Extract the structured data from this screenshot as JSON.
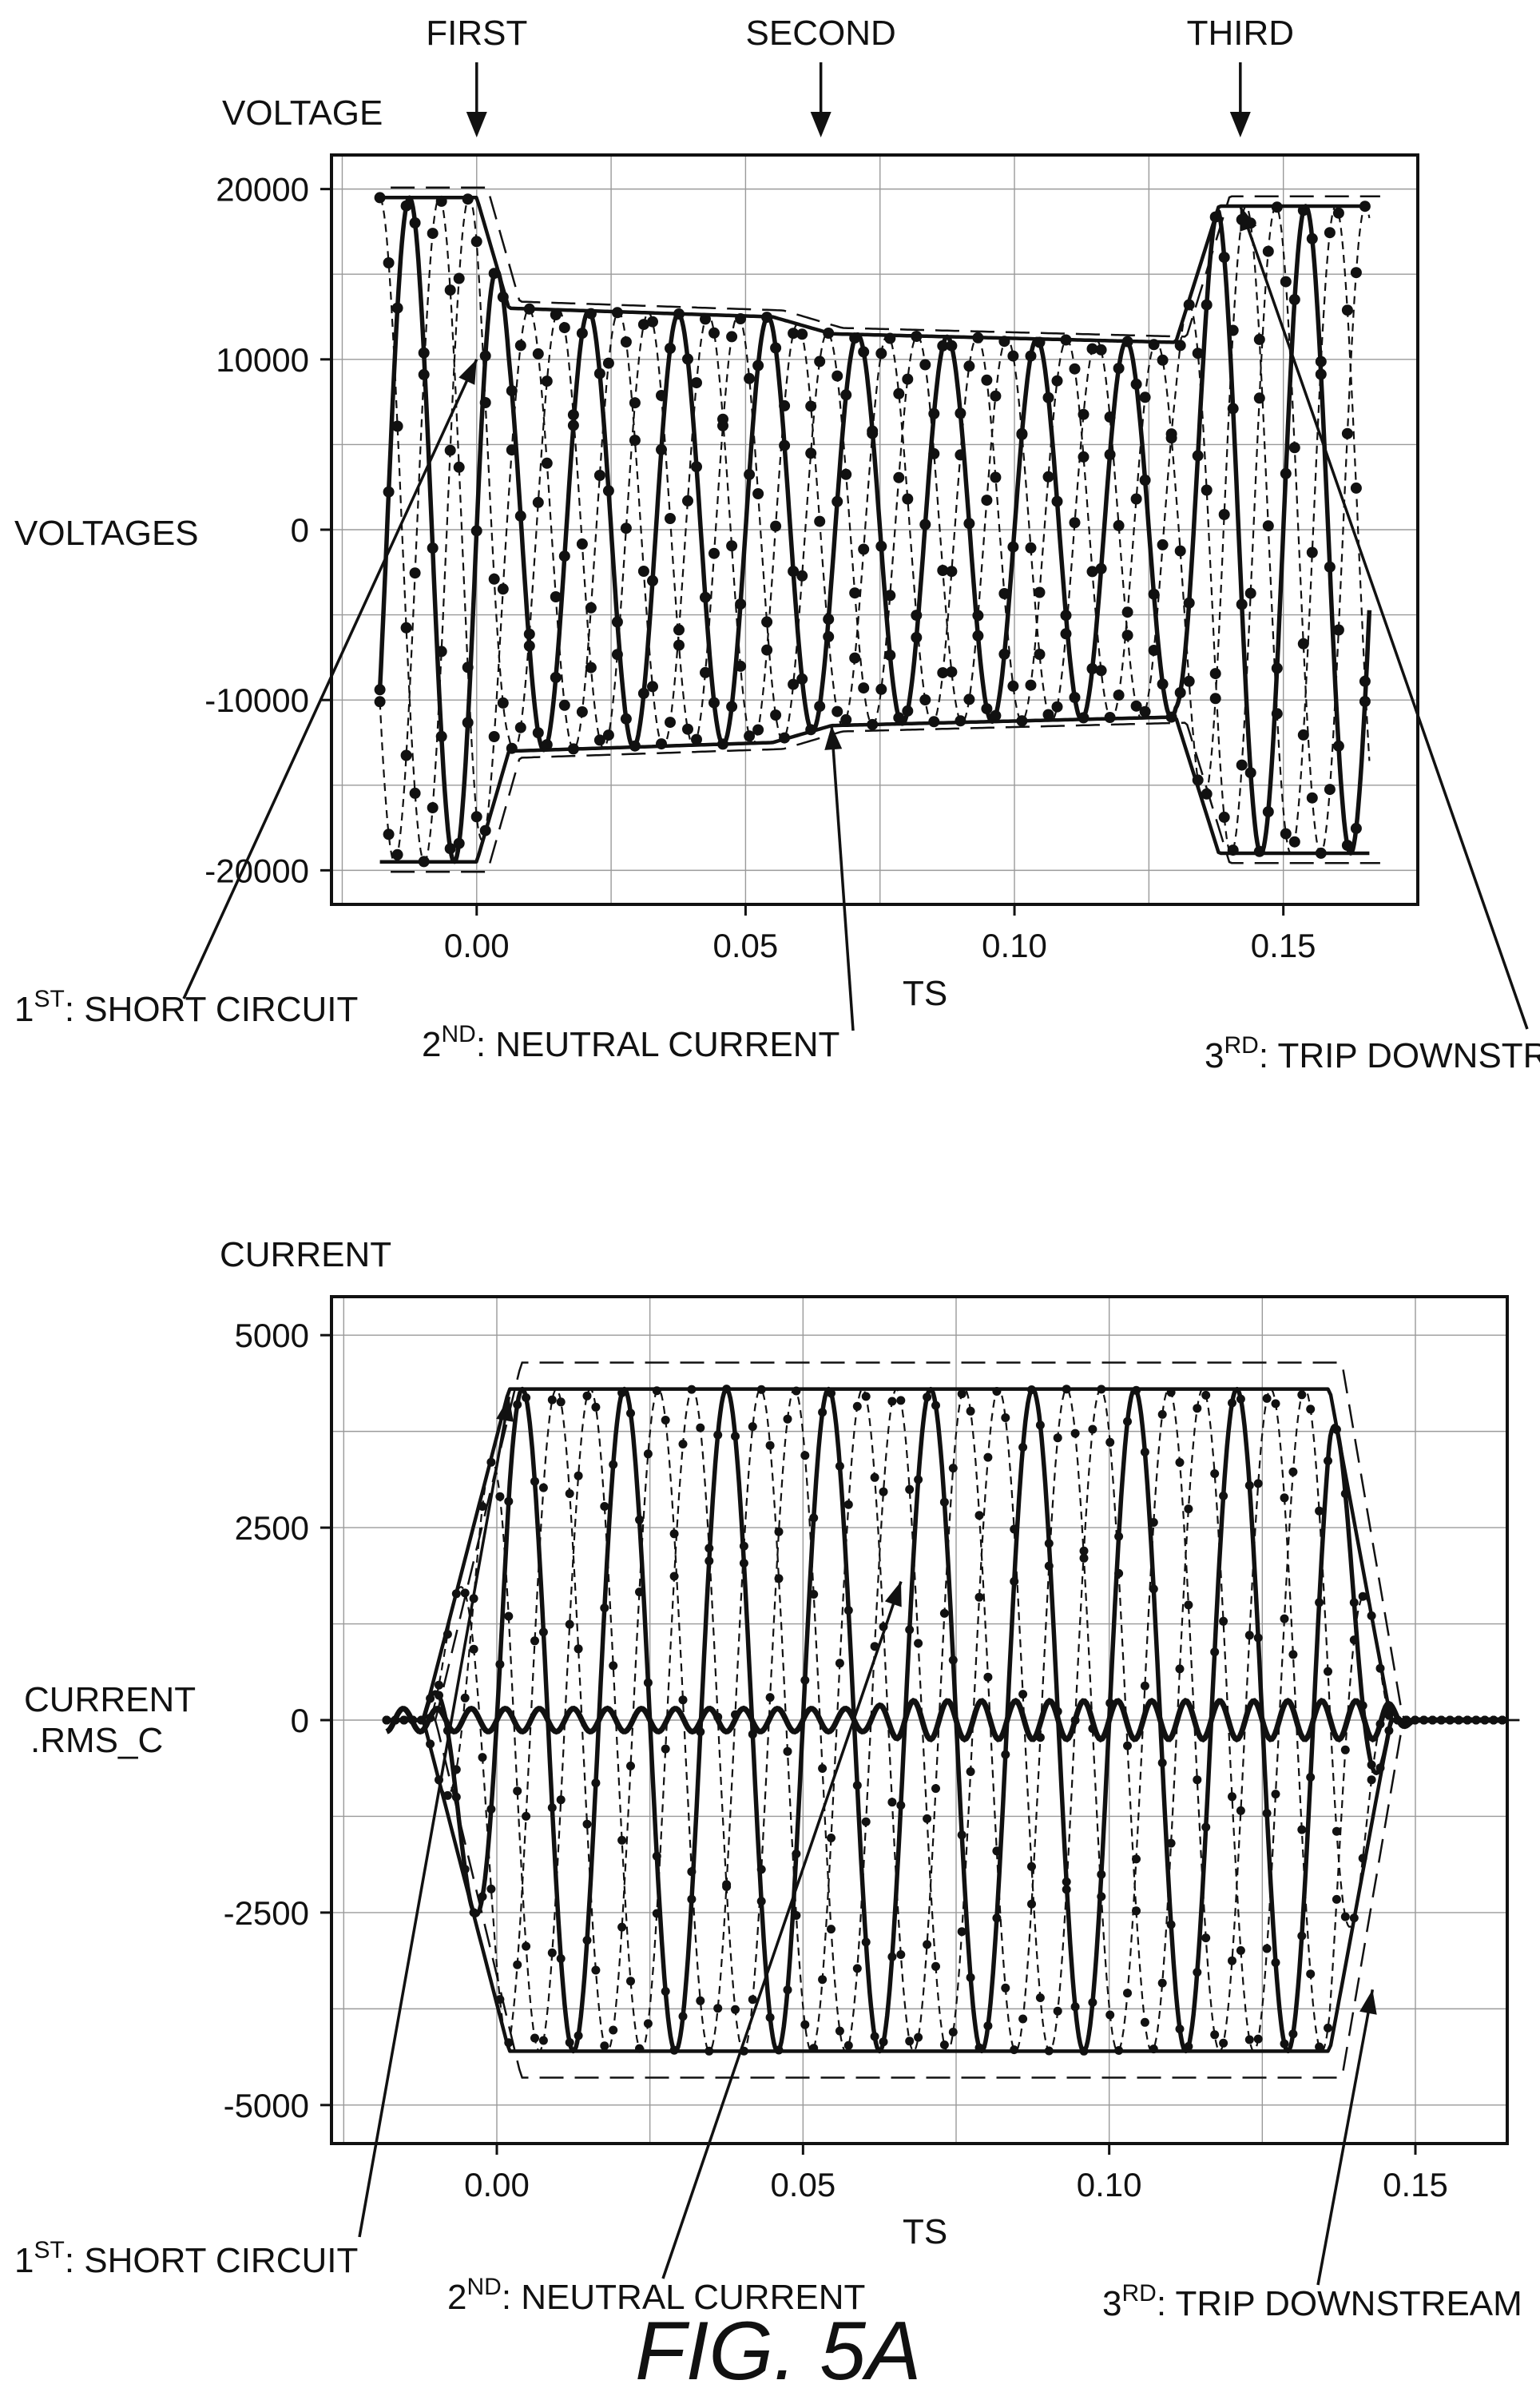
{
  "figure_caption": "FIG. 5A",
  "chart_data": [
    {
      "type": "line",
      "panel_heading": "VOLTAGE",
      "ylabel": "VOLTAGES",
      "xlabel": "TS",
      "xlim": [
        -0.027,
        0.175
      ],
      "ylim": [
        -22000,
        22000
      ],
      "x_ticks": [
        0.0,
        0.05,
        0.1,
        0.15
      ],
      "x_tick_labels": [
        "0.00",
        "0.05",
        "0.10",
        "0.15"
      ],
      "y_ticks": [
        20000,
        10000,
        0,
        -10000,
        -20000
      ],
      "y_tick_labels": [
        "20000",
        "10000",
        "0",
        "-10000",
        "-20000"
      ],
      "grid": true,
      "events_top": [
        {
          "label": "FIRST",
          "x": 0.0
        },
        {
          "label": "SECOND",
          "x": 0.064
        },
        {
          "label": "THIRD",
          "x": 0.142
        }
      ],
      "annotations": [
        {
          "base": "1",
          "sup": "ST",
          "text": ": SHORT CIRCUIT",
          "x": 0.0,
          "y": 10000
        },
        {
          "base": "2",
          "sup": "ND",
          "text": ": NEUTRAL CURRENT",
          "x": 0.066,
          "y": -11500
        },
        {
          "base": "3",
          "sup": "RD",
          "text": ": TRIP DOWNSTREAM",
          "x": 0.142,
          "y": 19000
        }
      ],
      "series_model": {
        "phase_amplitude": [
          {
            "x": -0.018,
            "value": 19500
          },
          {
            "x": 0.0,
            "value": 19500
          },
          {
            "x": 0.006,
            "value": 13000
          },
          {
            "x": 0.055,
            "value": 12500
          },
          {
            "x": 0.066,
            "value": 11500
          },
          {
            "x": 0.13,
            "value": 11000
          },
          {
            "x": 0.138,
            "value": 19000
          },
          {
            "x": 0.166,
            "value": 19000
          }
        ],
        "frequency_hz": 60,
        "x_range": [
          -0.018,
          0.166
        ]
      }
    },
    {
      "type": "line",
      "panel_heading": "CURRENT",
      "ylabel": "CURRENT\n.RMS_C",
      "ylabel_lines": [
        "CURRENT",
        ".RMS_C"
      ],
      "xlabel": "TS",
      "xlim": [
        -0.027,
        0.165
      ],
      "ylim": [
        -5500,
        5500
      ],
      "x_ticks": [
        0.0,
        0.05,
        0.1,
        0.15
      ],
      "x_tick_labels": [
        "0.00",
        "0.05",
        "0.10",
        "0.15"
      ],
      "y_ticks": [
        5000,
        2500,
        0,
        -2500,
        -5000
      ],
      "y_tick_labels": [
        "5000",
        "2500",
        "0",
        "-2500",
        "-5000"
      ],
      "grid": true,
      "annotations": [
        {
          "base": "1",
          "sup": "ST",
          "text": ": SHORT CIRCUIT",
          "x": 0.002,
          "y": 4200
        },
        {
          "base": "2",
          "sup": "ND",
          "text": ": NEUTRAL CURRENT",
          "x": 0.066,
          "y": 1800
        },
        {
          "base": "3",
          "sup": "RD",
          "text": ": TRIP DOWNSTREAM",
          "x": 0.143,
          "y": -3500
        }
      ],
      "series_model": {
        "phase_amplitude": [
          {
            "x": -0.018,
            "value": 0
          },
          {
            "x": -0.012,
            "value": 0
          },
          {
            "x": 0.002,
            "value": 4300
          },
          {
            "x": 0.136,
            "value": 4300
          },
          {
            "x": 0.146,
            "value": 0
          },
          {
            "x": 0.165,
            "value": 0
          }
        ],
        "neutral_amplitude": [
          {
            "x": -0.018,
            "value": 150
          },
          {
            "x": 0.06,
            "value": 150
          },
          {
            "x": 0.066,
            "value": 250
          },
          {
            "x": 0.145,
            "value": 250
          },
          {
            "x": 0.15,
            "value": 0
          }
        ],
        "frequency_hz": 60,
        "x_range": [
          -0.018,
          0.165
        ]
      }
    }
  ]
}
